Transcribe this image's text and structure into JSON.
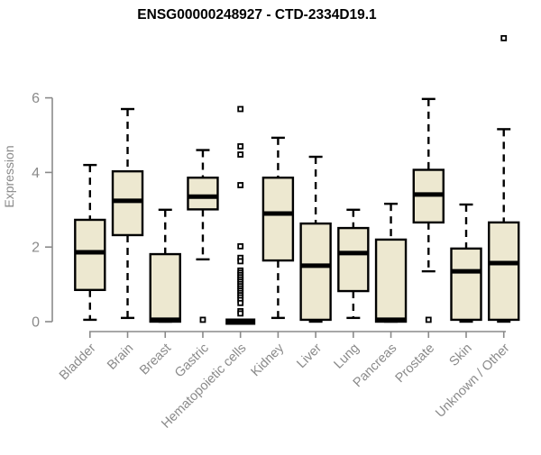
{
  "chart_data": {
    "type": "boxplot",
    "title": "ENSG00000248927 - CTD-2334D19.1",
    "xlabel": "",
    "ylabel": "Expression",
    "ylim": [
      0,
      6
    ],
    "yticks": [
      0,
      2,
      4,
      6
    ],
    "grid": false,
    "legend": "none",
    "xticklabel_rotation": 45,
    "colors": {
      "box_fill": "#EDE8D0",
      "box_stroke": "#000000",
      "median": "#000000",
      "whisker": "#000000",
      "outlier_stroke": "#000000",
      "axis": "#8A8A8A",
      "tick_text": "#8A8A8A",
      "title_text": "#000000",
      "background": "#FFFFFF"
    },
    "categories": [
      "Bladder",
      "Brain",
      "Breast",
      "Gastric",
      "Hematopoietic cells",
      "Kidney",
      "Liver",
      "Lung",
      "Pancreas",
      "Prostate",
      "Skin",
      "Unknown / Other"
    ],
    "series": [
      {
        "category": "Bladder",
        "whisker_low": 0.05,
        "q1": 0.85,
        "median": 1.86,
        "q3": 2.73,
        "whisker_high": 4.2,
        "outliers": []
      },
      {
        "category": "Brain",
        "whisker_low": 0.1,
        "q1": 2.32,
        "median": 3.24,
        "q3": 4.03,
        "whisker_high": 5.7,
        "outliers": []
      },
      {
        "category": "Breast",
        "whisker_low": 0.0,
        "q1": 0.0,
        "median": 0.05,
        "q3": 1.81,
        "whisker_high": 3.0,
        "outliers": []
      },
      {
        "category": "Gastric",
        "whisker_low": 1.67,
        "q1": 3.01,
        "median": 3.35,
        "q3": 3.86,
        "whisker_high": 4.6,
        "outliers": [
          0.05
        ]
      },
      {
        "category": "Hematopoietic cells",
        "whisker_low": 0.0,
        "q1": 0.0,
        "median": 0.0,
        "q3": 0.0,
        "whisker_high": 0.0,
        "outliers": [
          5.7,
          4.7,
          4.48,
          3.66,
          2.02,
          1.71,
          1.62,
          1.37,
          1.31,
          1.25,
          1.19,
          1.13,
          1.07,
          1.01,
          0.95,
          0.89,
          0.83,
          0.77,
          0.71,
          0.65,
          0.58,
          0.5,
          0.28,
          0.22
        ]
      },
      {
        "category": "Kidney",
        "whisker_low": 0.1,
        "q1": 1.64,
        "median": 2.9,
        "q3": 3.86,
        "whisker_high": 4.93,
        "outliers": []
      },
      {
        "category": "Liver",
        "whisker_low": 0.0,
        "q1": 0.05,
        "median": 1.5,
        "q3": 2.63,
        "whisker_high": 4.42,
        "outliers": []
      },
      {
        "category": "Lung",
        "whisker_low": 0.1,
        "q1": 0.82,
        "median": 1.84,
        "q3": 2.51,
        "whisker_high": 3.0,
        "outliers": []
      },
      {
        "category": "Pancreas",
        "whisker_low": 0.0,
        "q1": 0.0,
        "median": 0.05,
        "q3": 2.2,
        "whisker_high": 3.16,
        "outliers": []
      },
      {
        "category": "Prostate",
        "whisker_low": 1.35,
        "q1": 2.66,
        "median": 3.41,
        "q3": 4.07,
        "whisker_high": 5.97,
        "outliers": [
          0.05
        ]
      },
      {
        "category": "Skin",
        "whisker_low": 0.0,
        "q1": 0.05,
        "median": 1.35,
        "q3": 1.96,
        "whisker_high": 3.14,
        "outliers": []
      },
      {
        "category": "Unknown / Other",
        "whisker_low": 0.0,
        "q1": 0.05,
        "median": 1.57,
        "q3": 2.66,
        "whisker_high": 5.16,
        "outliers": [
          7.6
        ]
      }
    ]
  }
}
